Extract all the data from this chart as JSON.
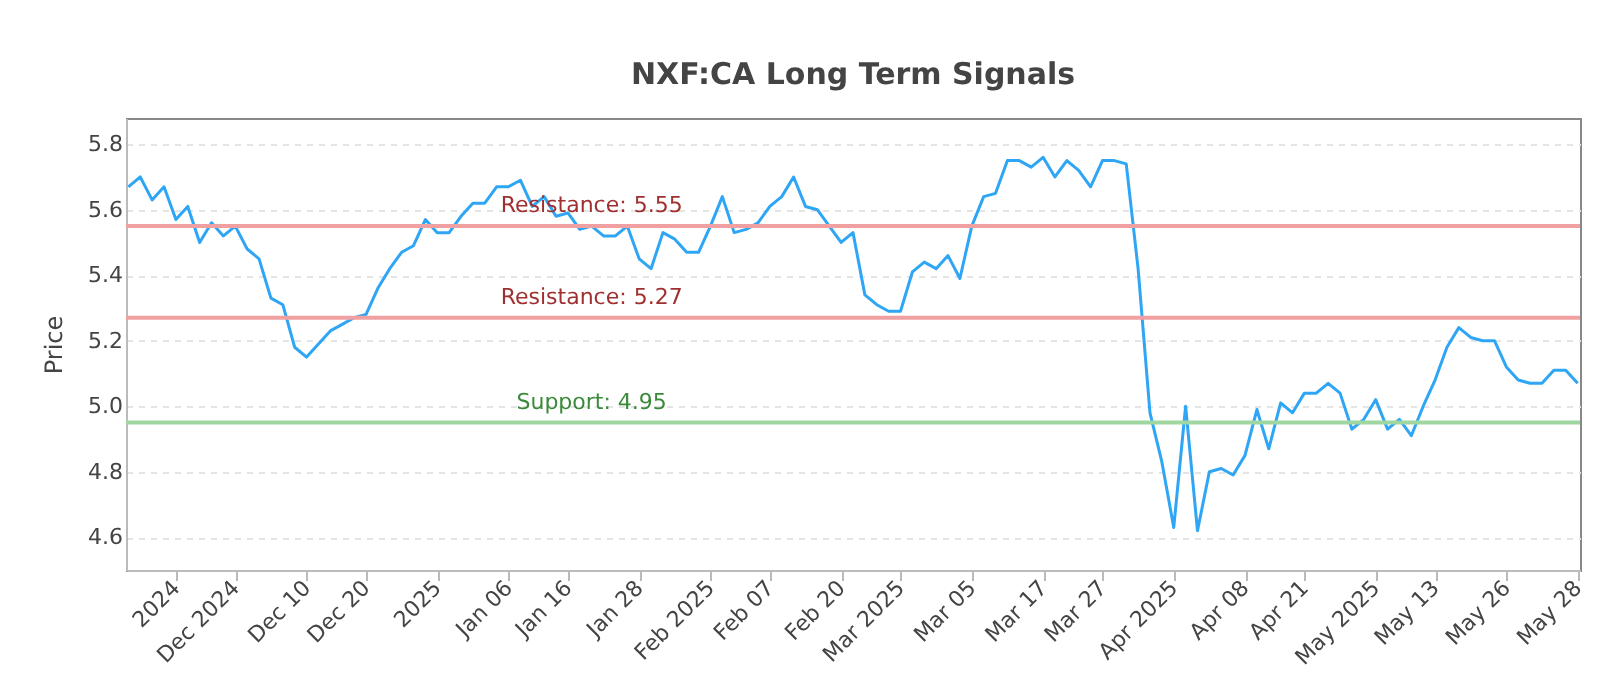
{
  "chart_data": {
    "type": "line",
    "title": "NXF:CA Long Term Signals",
    "ylabel": "Price",
    "categories": [
      null,
      null,
      null,
      null,
      "2024",
      null,
      null,
      null,
      null,
      "Dec 2024",
      null,
      null,
      null,
      null,
      null,
      "Dec 10",
      null,
      null,
      null,
      null,
      "Dec 20",
      null,
      null,
      null,
      null,
      null,
      "2025",
      null,
      null,
      null,
      null,
      null,
      "Jan 06",
      null,
      null,
      null,
      null,
      "Jan 16",
      null,
      null,
      null,
      null,
      null,
      "Jan 28",
      null,
      null,
      null,
      null,
      null,
      "Feb 2025",
      null,
      null,
      null,
      null,
      "Feb 07",
      null,
      null,
      null,
      null,
      null,
      "Feb 20",
      null,
      null,
      null,
      null,
      "Mar 2025",
      null,
      null,
      null,
      null,
      null,
      "Mar 05",
      null,
      null,
      null,
      null,
      null,
      "Mar 17",
      null,
      null,
      null,
      null,
      "Mar 27",
      null,
      null,
      null,
      null,
      null,
      "Apr 2025",
      null,
      null,
      null,
      null,
      null,
      "Apr 08",
      null,
      null,
      null,
      null,
      "Apr 21",
      null,
      null,
      null,
      null,
      null,
      "May 2025",
      null,
      null,
      null,
      null,
      "May 13",
      null,
      null,
      null,
      null,
      null,
      "May 26",
      null,
      null,
      null,
      null,
      null,
      "May 28"
    ],
    "series": [
      {
        "color": "#2ea6f5",
        "values": [
          5.67,
          5.7,
          5.63,
          5.67,
          5.57,
          5.61,
          5.5,
          5.56,
          5.52,
          5.55,
          5.48,
          5.45,
          5.33,
          5.31,
          5.18,
          5.15,
          5.19,
          5.23,
          5.25,
          5.27,
          5.28,
          5.36,
          5.42,
          5.47,
          5.49,
          5.57,
          5.53,
          5.53,
          5.58,
          5.62,
          5.62,
          5.67,
          5.67,
          5.69,
          5.61,
          5.64,
          5.58,
          5.59,
          5.54,
          5.55,
          5.52,
          5.52,
          5.55,
          5.45,
          5.42,
          5.53,
          5.51,
          5.47,
          5.47,
          5.55,
          5.64,
          5.53,
          5.54,
          5.56,
          5.61,
          5.64,
          5.7,
          5.61,
          5.6,
          5.55,
          5.5,
          5.53,
          5.34,
          5.31,
          5.29,
          5.29,
          5.41,
          5.44,
          5.42,
          5.46,
          5.39,
          5.55,
          5.64,
          5.65,
          5.75,
          5.75,
          5.73,
          5.76,
          5.7,
          5.75,
          5.72,
          5.67,
          5.75,
          5.75,
          5.74,
          5.42,
          4.98,
          4.83,
          4.63,
          5.0,
          4.62,
          4.8,
          4.81,
          4.79,
          4.85,
          4.99,
          4.87,
          5.01,
          4.98,
          5.04,
          5.04,
          5.07,
          5.04,
          4.93,
          4.96,
          5.02,
          4.93,
          4.96,
          4.91,
          5.0,
          5.08,
          5.18,
          5.24,
          5.21,
          5.2,
          5.2,
          5.12,
          5.08,
          5.07,
          5.07,
          5.11,
          5.11,
          5.07
        ]
      }
    ],
    "ylim": [
      4.5,
      5.88
    ],
    "yticks": [
      4.6,
      4.8,
      {
        "value": 5,
        "label": "5.0"
      },
      5.2,
      5.4,
      5.6,
      5.8
    ],
    "grid": "y",
    "marker": "none",
    "line_style": "solid",
    "ref_lines": [
      {
        "axis": "y",
        "value": 5.55,
        "label": "Resistance: 5.55",
        "color": "#f0a0a0"
      },
      {
        "axis": "y",
        "value": 5.27,
        "label": "Resistance: 5.27",
        "color": "#f0a0a0"
      },
      {
        "axis": "y",
        "value": 4.95,
        "label": "Support: 4.95",
        "color": "#a0d6a0"
      }
    ]
  }
}
